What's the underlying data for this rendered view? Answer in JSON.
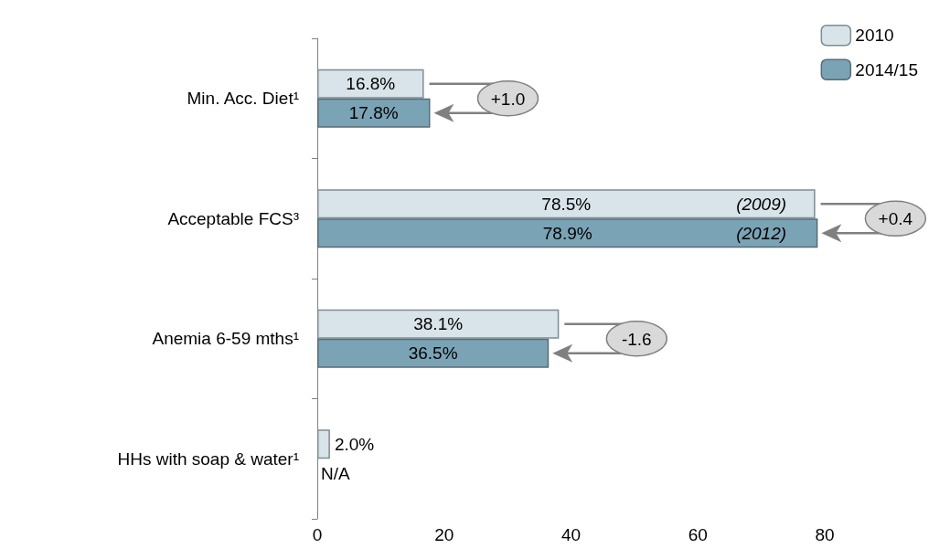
{
  "chart_data": {
    "type": "bar",
    "orientation": "horizontal",
    "categories": [
      "Min. Acc. Diet¹",
      "Acceptable FCS³",
      "Anemia 6-59 mths¹",
      "HHs with soap & water¹"
    ],
    "series": [
      {
        "name": "2010",
        "color": "#d9e4ea",
        "values": [
          16.8,
          78.5,
          38.1,
          2.0
        ],
        "value_labels": [
          "16.8%",
          "78.5%",
          "38.1%",
          "2.0%"
        ]
      },
      {
        "name": "2014/15",
        "color": "#7aa3b5",
        "values": [
          17.8,
          78.9,
          36.5,
          null
        ],
        "value_labels": [
          "17.8%",
          "78.9%",
          "36.5%",
          "N/A"
        ]
      }
    ],
    "xlim": [
      0,
      80
    ],
    "xticks": [
      0,
      20,
      40,
      60,
      80
    ],
    "grid": false,
    "legend": "top right",
    "annotations": [
      {
        "text": "(2009)",
        "x": 70,
        "y": "Acceptable FCS³"
      },
      {
        "text": "(2012)",
        "x": 70,
        "y": "Acceptable FCS³"
      },
      "+1.0",
      "+0.4",
      "-1.6"
    ]
  }
}
